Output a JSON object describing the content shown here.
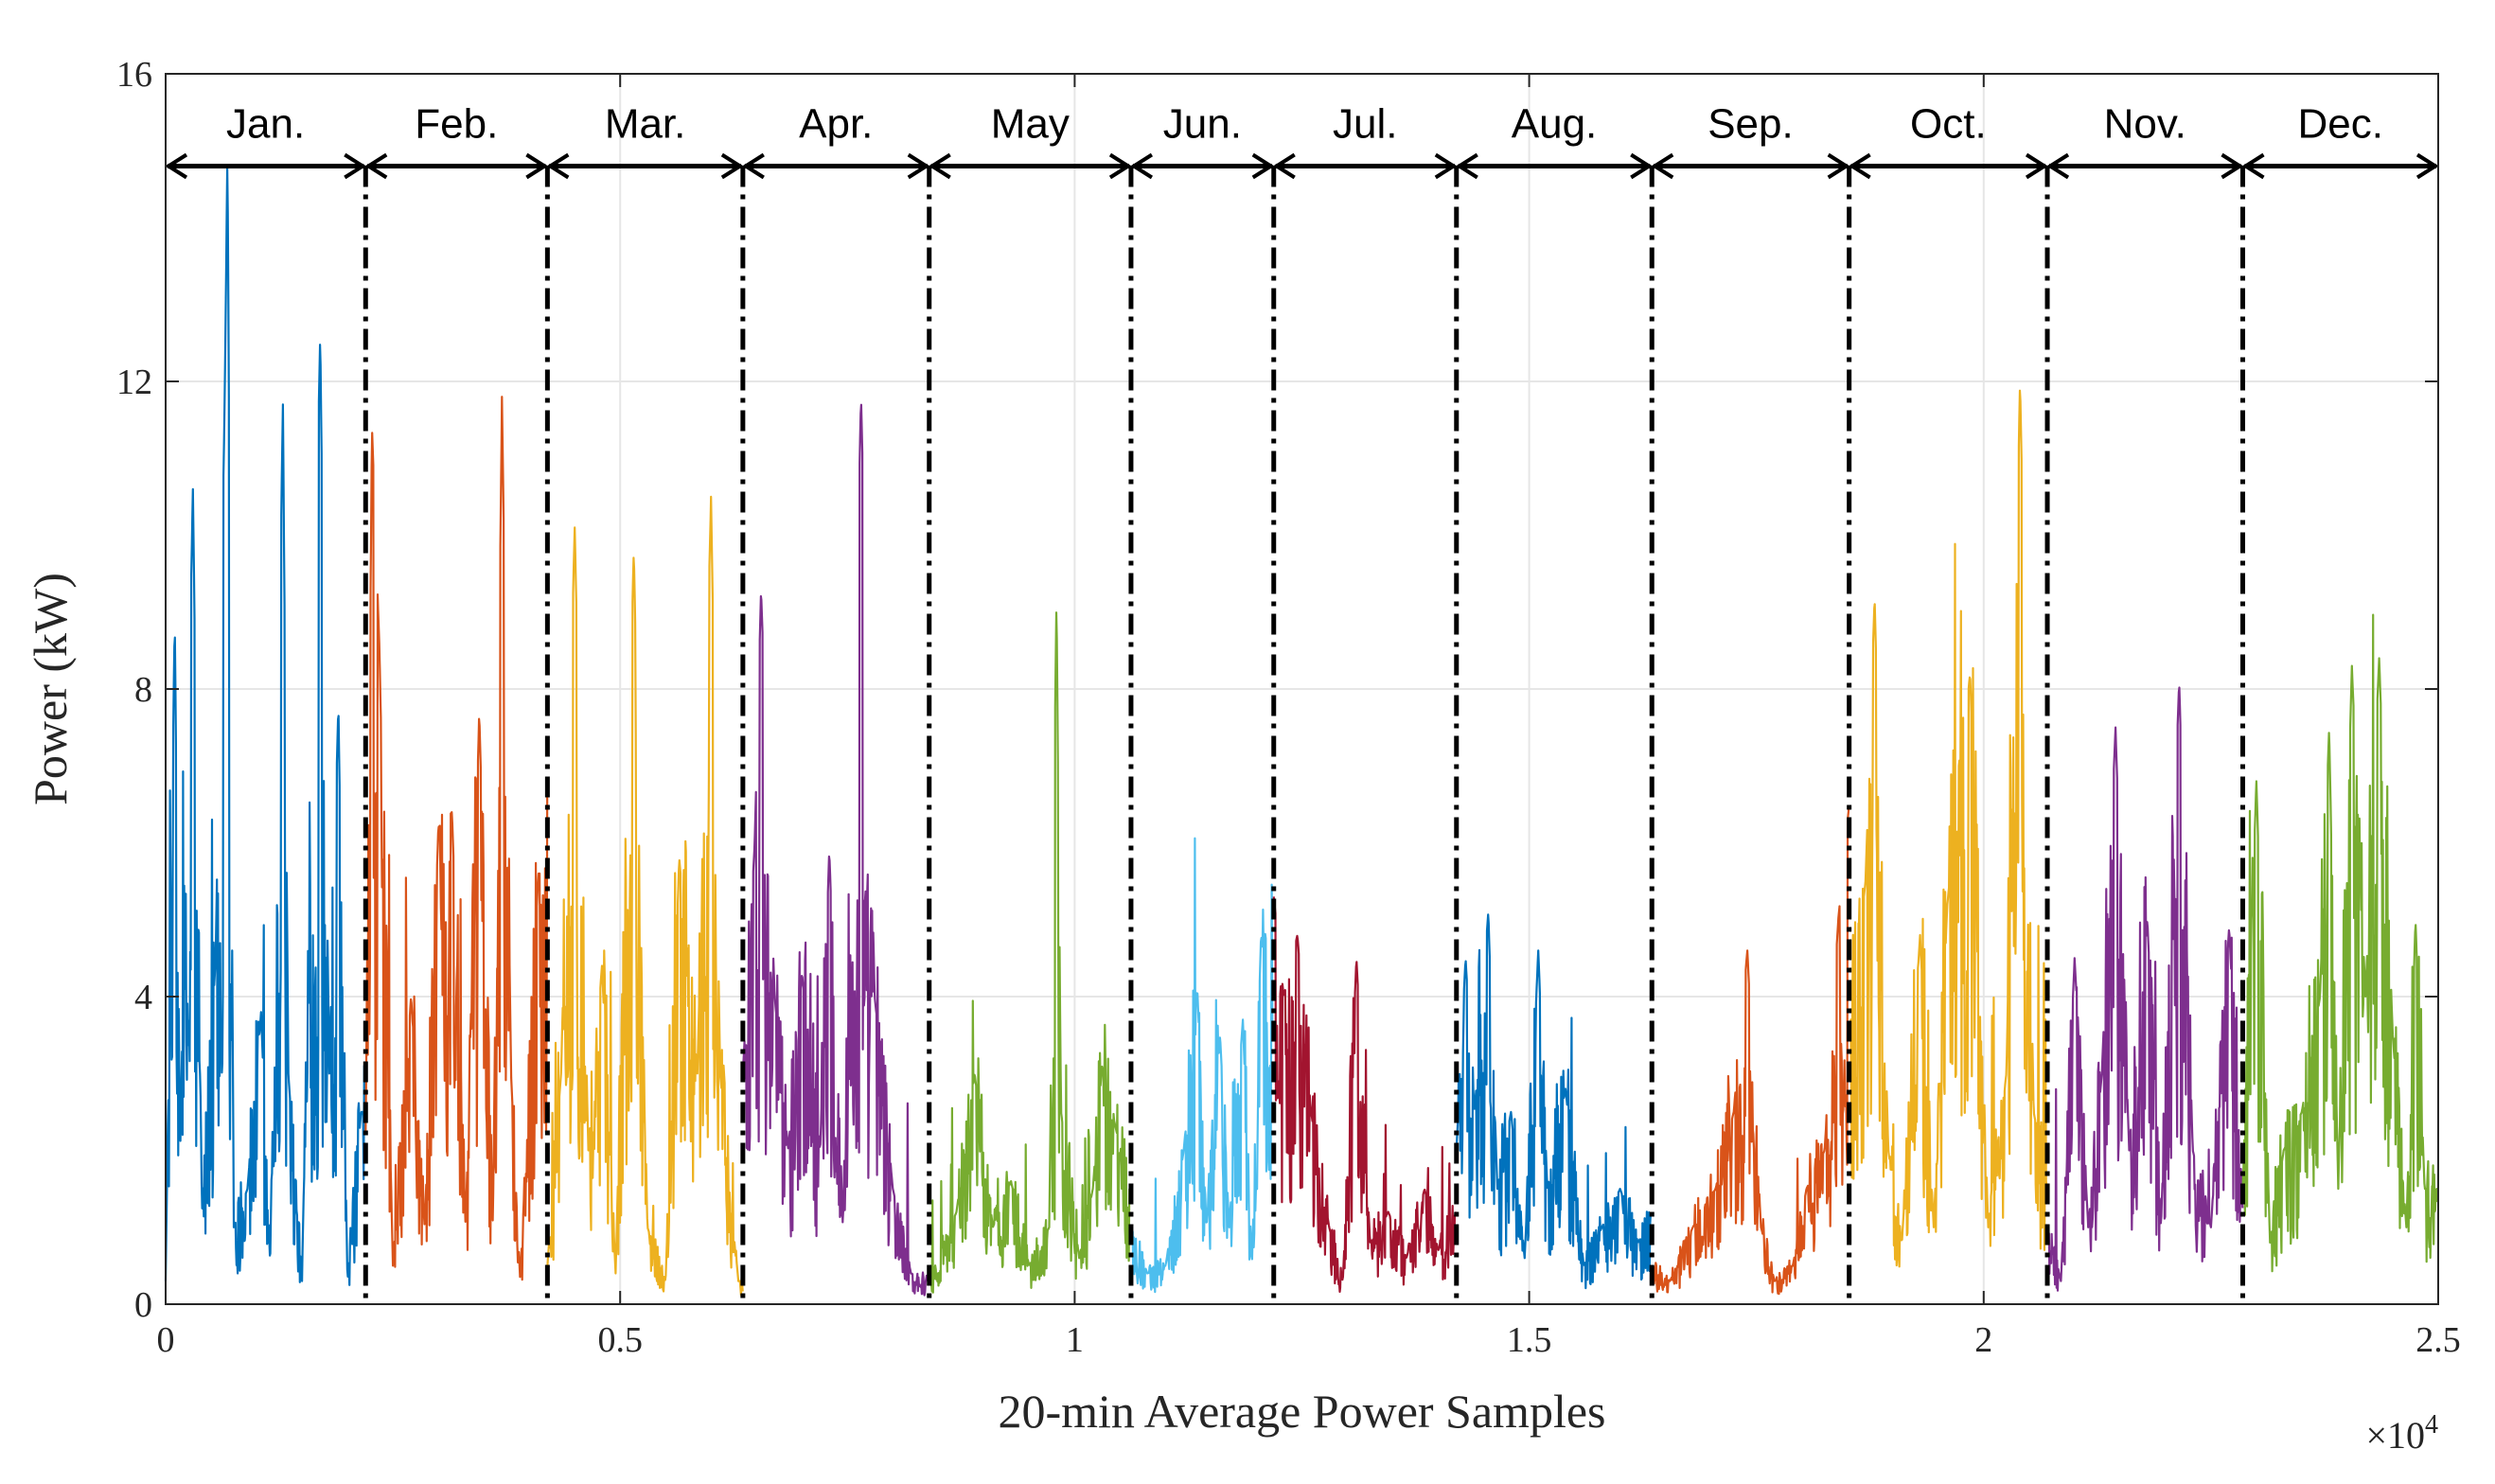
{
  "chart_data": {
    "type": "line",
    "title": "",
    "xlabel": "20-min Average Power Samples",
    "ylabel": "Power (kW)",
    "xlim": [
      0,
      25000
    ],
    "ylim": [
      0,
      16
    ],
    "x_exponent_label": "×10",
    "x_exponent_power": "4",
    "x_ticks": [
      {
        "value": 0,
        "label": "0"
      },
      {
        "value": 5000,
        "label": "0.5"
      },
      {
        "value": 10000,
        "label": "1"
      },
      {
        "value": 15000,
        "label": "1.5"
      },
      {
        "value": 20000,
        "label": "2"
      },
      {
        "value": 25000,
        "label": "2.5"
      }
    ],
    "y_ticks": [
      {
        "value": 0,
        "label": "0"
      },
      {
        "value": 4,
        "label": "4"
      },
      {
        "value": 8,
        "label": "8"
      },
      {
        "value": 12,
        "label": "12"
      },
      {
        "value": 16,
        "label": "16"
      }
    ],
    "grid": true,
    "month_boundaries": [
      0,
      2200,
      4200,
      6350,
      8400,
      10620,
      12190,
      14200,
      16350,
      18520,
      20700,
      22850,
      25000
    ],
    "arrow_level": 14.8,
    "series": [
      {
        "name": "Jan.",
        "color": "#0072BD",
        "start": 0,
        "end": 2200,
        "base": 1.2,
        "noise": 1.5,
        "points": [
          [
            0,
            0.3
          ],
          [
            100,
            8.9
          ],
          [
            160,
            2.0
          ],
          [
            300,
            10.6
          ],
          [
            400,
            1.2
          ],
          [
            550,
            4.5
          ],
          [
            650,
            11.8
          ],
          [
            680,
            15.0
          ],
          [
            750,
            1.0
          ],
          [
            900,
            1.5
          ],
          [
            1050,
            3.8
          ],
          [
            1150,
            0.5
          ],
          [
            1290,
            11.7
          ],
          [
            1350,
            3.0
          ],
          [
            1500,
            0.3
          ],
          [
            1700,
            12.6
          ],
          [
            1800,
            3.0
          ],
          [
            1900,
            7.8
          ],
          [
            2000,
            0.3
          ],
          [
            2150,
            2.5
          ]
        ]
      },
      {
        "name": "Feb.",
        "color": "#D95319",
        "start": 2200,
        "end": 4200,
        "base": 2.0,
        "noise": 1.6,
        "points": [
          [
            2200,
            2.2
          ],
          [
            2270,
            11.4
          ],
          [
            2350,
            8.6
          ],
          [
            2500,
            0.5
          ],
          [
            2700,
            4.0
          ],
          [
            2850,
            1.0
          ],
          [
            3000,
            6.2
          ],
          [
            3150,
            6.4
          ],
          [
            3300,
            1.0
          ],
          [
            3450,
            7.7
          ],
          [
            3600,
            1.0
          ],
          [
            3700,
            11.8
          ],
          [
            3800,
            3.0
          ],
          [
            3900,
            0.3
          ],
          [
            4100,
            5.6
          ]
        ]
      },
      {
        "name": "Mar.",
        "color": "#EDB120",
        "start": 4200,
        "end": 6350,
        "base": 1.6,
        "noise": 1.6,
        "points": [
          [
            4200,
            0.5
          ],
          [
            4350,
            3.0
          ],
          [
            4500,
            10.1
          ],
          [
            4650,
            2.0
          ],
          [
            4800,
            4.4
          ],
          [
            4950,
            0.4
          ],
          [
            5150,
            9.8
          ],
          [
            5300,
            1.0
          ],
          [
            5500,
            0.3
          ],
          [
            5650,
            5.8
          ],
          [
            5850,
            3.0
          ],
          [
            6000,
            10.5
          ],
          [
            6100,
            3.0
          ],
          [
            6300,
            0.3
          ]
        ]
      },
      {
        "name": "Apr.",
        "color": "#7E2F8E",
        "start": 6350,
        "end": 8400,
        "base": 1.5,
        "noise": 1.4,
        "points": [
          [
            6350,
            3.0
          ],
          [
            6480,
            6.0
          ],
          [
            6550,
            9.3
          ],
          [
            6700,
            4.0
          ],
          [
            6850,
            2.0
          ],
          [
            7000,
            4.3
          ],
          [
            7200,
            2.0
          ],
          [
            7300,
            5.9
          ],
          [
            7450,
            1.0
          ],
          [
            7650,
            11.8
          ],
          [
            7800,
            4.0
          ],
          [
            8000,
            1.5
          ],
          [
            8200,
            0.4
          ],
          [
            8400,
            0.3
          ]
        ]
      },
      {
        "name": "May",
        "color": "#77AC30",
        "start": 8400,
        "end": 10620,
        "base": 1.0,
        "noise": 0.9,
        "points": [
          [
            8400,
            0.3
          ],
          [
            8700,
            1.2
          ],
          [
            8900,
            3.0
          ],
          [
            9100,
            1.0
          ],
          [
            9300,
            1.6
          ],
          [
            9500,
            0.5
          ],
          [
            9720,
            1.0
          ],
          [
            9800,
            9.2
          ],
          [
            9850,
            2.5
          ],
          [
            10050,
            0.6
          ],
          [
            10200,
            1.5
          ],
          [
            10300,
            3.1
          ],
          [
            10450,
            2.3
          ],
          [
            10620,
            1.4
          ]
        ]
      },
      {
        "name": "Jun.",
        "color": "#4DBEEE",
        "start": 10620,
        "end": 12190,
        "base": 1.5,
        "noise": 1.4,
        "points": [
          [
            10620,
            1.0
          ],
          [
            10800,
            0.4
          ],
          [
            11000,
            0.5
          ],
          [
            11200,
            2.0
          ],
          [
            11350,
            4.1
          ],
          [
            11450,
            1.0
          ],
          [
            11600,
            3.5
          ],
          [
            11700,
            1.0
          ],
          [
            11850,
            3.7
          ],
          [
            11950,
            0.5
          ],
          [
            12050,
            4.8
          ],
          [
            12190,
            3.5
          ]
        ]
      },
      {
        "name": "Jul.",
        "color": "#A2142F",
        "start": 12190,
        "end": 14200,
        "base": 1.2,
        "noise": 1.0,
        "points": [
          [
            12190,
            5.3
          ],
          [
            12300,
            4.0
          ],
          [
            12450,
            4.8
          ],
          [
            12600,
            2.5
          ],
          [
            12800,
            1.0
          ],
          [
            12950,
            0.3
          ],
          [
            13100,
            4.5
          ],
          [
            13250,
            0.8
          ],
          [
            13450,
            1.2
          ],
          [
            13650,
            0.6
          ],
          [
            13850,
            1.5
          ],
          [
            14000,
            0.7
          ],
          [
            14200,
            1.2
          ]
        ]
      },
      {
        "name": "Aug.",
        "color": "#0072BD",
        "start": 14200,
        "end": 16350,
        "base": 1.2,
        "noise": 0.9,
        "points": [
          [
            14200,
            2.0
          ],
          [
            14300,
            4.5
          ],
          [
            14400,
            2.5
          ],
          [
            14550,
            5.1
          ],
          [
            14650,
            1.5
          ],
          [
            14800,
            2.5
          ],
          [
            14950,
            0.6
          ],
          [
            15100,
            4.6
          ],
          [
            15200,
            1.5
          ],
          [
            15400,
            2.8
          ],
          [
            15600,
            0.5
          ],
          [
            15800,
            1.0
          ],
          [
            16000,
            1.5
          ],
          [
            16200,
            0.8
          ],
          [
            16350,
            1.2
          ]
        ]
      },
      {
        "name": "Sep.",
        "color": "#D95319",
        "start": 16350,
        "end": 18520,
        "base": 0.8,
        "noise": 0.8,
        "points": [
          [
            16350,
            0.5
          ],
          [
            16550,
            0.3
          ],
          [
            16800,
            1.0
          ],
          [
            17050,
            1.5
          ],
          [
            17250,
            2.5
          ],
          [
            17400,
            4.6
          ],
          [
            17550,
            1.0
          ],
          [
            17700,
            0.3
          ],
          [
            17900,
            0.5
          ],
          [
            18050,
            1.5
          ],
          [
            18250,
            2.0
          ],
          [
            18400,
            5.0
          ],
          [
            18520,
            6.5
          ]
        ]
      },
      {
        "name": "Oct.",
        "color": "#EDB120",
        "start": 18520,
        "end": 20700,
        "base": 2.4,
        "noise": 1.8,
        "points": [
          [
            18520,
            3.5
          ],
          [
            18700,
            5.5
          ],
          [
            18800,
            9.2
          ],
          [
            18950,
            2.0
          ],
          [
            19100,
            0.8
          ],
          [
            19300,
            4.8
          ],
          [
            19450,
            1.0
          ],
          [
            19600,
            5.2
          ],
          [
            19850,
            8.2
          ],
          [
            20050,
            1.0
          ],
          [
            20250,
            3.0
          ],
          [
            20400,
            12.0
          ],
          [
            20550,
            2.5
          ],
          [
            20700,
            1.5
          ]
        ]
      },
      {
        "name": "Nov.",
        "color": "#7E2F8E",
        "start": 20700,
        "end": 22850,
        "base": 1.6,
        "noise": 1.6,
        "points": [
          [
            20700,
            1.0
          ],
          [
            20850,
            0.3
          ],
          [
            21000,
            4.5
          ],
          [
            21150,
            1.0
          ],
          [
            21300,
            3.0
          ],
          [
            21450,
            7.5
          ],
          [
            21600,
            2.0
          ],
          [
            21800,
            5.0
          ],
          [
            21950,
            1.0
          ],
          [
            22150,
            8.1
          ],
          [
            22300,
            2.0
          ],
          [
            22500,
            1.0
          ],
          [
            22700,
            4.9
          ],
          [
            22850,
            1.2
          ]
        ]
      },
      {
        "name": "Dec.",
        "color": "#77AC30",
        "start": 22850,
        "end": 25000,
        "base": 2.0,
        "noise": 1.6,
        "points": [
          [
            22850,
            1.5
          ],
          [
            23000,
            6.8
          ],
          [
            23150,
            0.8
          ],
          [
            23300,
            2.0
          ],
          [
            23500,
            2.5
          ],
          [
            23700,
            4.0
          ],
          [
            23800,
            7.5
          ],
          [
            23900,
            1.5
          ],
          [
            24050,
            8.3
          ],
          [
            24200,
            4.0
          ],
          [
            24350,
            8.4
          ],
          [
            24500,
            3.5
          ],
          [
            24650,
            1.0
          ],
          [
            24750,
            5.0
          ],
          [
            24850,
            1.5
          ],
          [
            25000,
            1.5
          ]
        ]
      }
    ]
  }
}
